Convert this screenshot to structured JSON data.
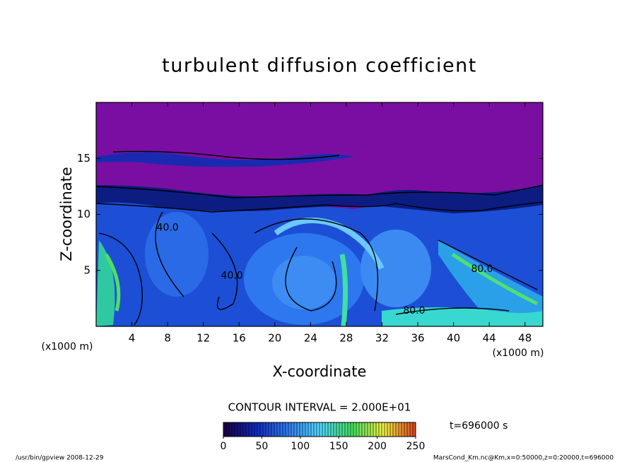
{
  "chart_data": {
    "type": "contour",
    "title": "turbulent diffusion coefficient",
    "xlabel": "X-coordinate",
    "ylabel": "Z-coordinate",
    "x_unit": "(x1000 m)",
    "xlim": [
      0,
      50
    ],
    "xticks": [
      4,
      8,
      12,
      16,
      20,
      24,
      28,
      32,
      36,
      40,
      44,
      48
    ],
    "ylim": [
      0,
      20
    ],
    "yticks": [
      5,
      10,
      15
    ],
    "contour_interval": "CONTOUR INTERVAL = 2.000E+01",
    "time_label": "t=696000 s",
    "colorbar": {
      "lim": [
        0,
        250
      ],
      "ticks": [
        0,
        50,
        100,
        150,
        200,
        250
      ],
      "colors": [
        "#1a0040",
        "#1028c0",
        "#2f7cf0",
        "#50d8ff",
        "#40e060",
        "#f0f040",
        "#e04020"
      ]
    },
    "annotations": [
      {
        "text": "40.0",
        "x": 8.0,
        "z": 8.8
      },
      {
        "text": "40.0",
        "x": 15.2,
        "z": 4.5
      },
      {
        "text": "80.0",
        "x": 43.2,
        "z": 5.1
      },
      {
        "text": "80.0",
        "x": 35.6,
        "z": 1.4
      }
    ],
    "footer_left": "/usr/bin/gpview   2008-12-29",
    "footer_right": "MarsCond_Km.nc@Km,x=0:50000,z=0:20000,t=696000"
  }
}
